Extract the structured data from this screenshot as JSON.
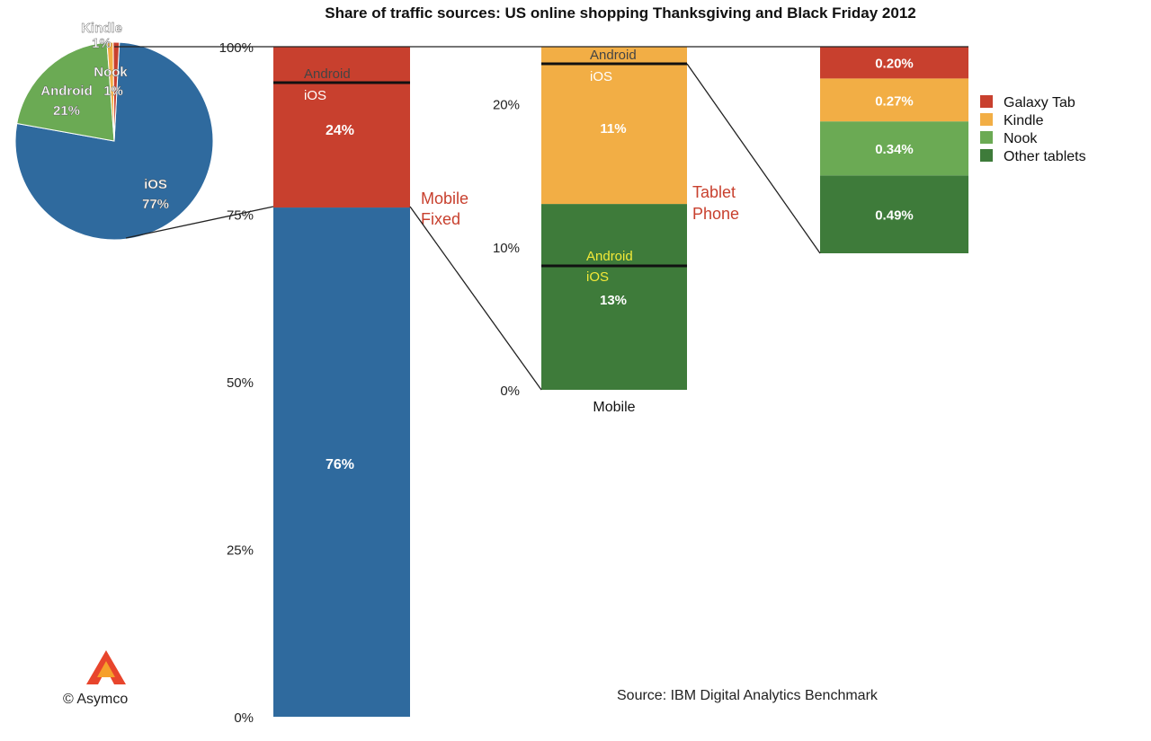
{
  "chart_data": {
    "type": "bar",
    "title": "Share of traffic sources: US online shopping Thanksgiving and Black Friday 2012",
    "source": "Source: IBM Digital Analytics Benchmark",
    "credit": "© Asymco",
    "colors": {
      "ios_blue": "#2F6A9E",
      "red": "#C8402E",
      "orange": "#F2AE45",
      "light_green": "#6BAA54",
      "dark_green": "#3E7B3A"
    },
    "pie": {
      "slices": [
        {
          "name": "iOS",
          "label": "77%",
          "value": 77,
          "color": "#2F6A9E"
        },
        {
          "name": "Android",
          "label": "21%",
          "value": 21,
          "color": "#6BAA54"
        },
        {
          "name": "Kindle",
          "label": "1%",
          "value": 1,
          "color": "#F2AE45"
        },
        {
          "name": "Nook",
          "label": "1%",
          "value": 1,
          "color": "#C8402E"
        }
      ]
    },
    "bar1": {
      "ylim": [
        0,
        100
      ],
      "ticks": [
        "0%",
        "25%",
        "50%",
        "75%",
        "100%"
      ],
      "tick_values": [
        0,
        25,
        50,
        75,
        100
      ],
      "segments": [
        {
          "name": "Fixed",
          "value": 76,
          "label": "76%",
          "color": "#2F6A9E"
        },
        {
          "name": "Mobile",
          "value": 24,
          "label": "24%",
          "color": "#C8402E",
          "sublabels": [
            "Android",
            "iOS"
          ]
        }
      ],
      "side_labels": [
        "Mobile",
        "Fixed"
      ]
    },
    "bar2": {
      "xlabel": "Mobile",
      "ylim": [
        0,
        24
      ],
      "ticks": [
        "0%",
        "10%",
        "20%"
      ],
      "tick_values": [
        0,
        10,
        20
      ],
      "segments": [
        {
          "name": "Phone",
          "value": 13,
          "label": "13%",
          "color": "#3E7B3A",
          "sublabels": [
            "Android",
            "iOS"
          ]
        },
        {
          "name": "Tablet",
          "value": 11,
          "label": "11%",
          "color": "#F2AE45",
          "sublabels": [
            "Android",
            "iOS"
          ]
        }
      ],
      "side_labels": [
        "Tablet",
        "Phone"
      ]
    },
    "bar3": {
      "segments": [
        {
          "name": "Other tablets",
          "value": 0.49,
          "label": "0.49%",
          "color": "#3E7B3A"
        },
        {
          "name": "Nook",
          "value": 0.34,
          "label": "0.34%",
          "color": "#6BAA54"
        },
        {
          "name": "Kindle",
          "value": 0.27,
          "label": "0.27%",
          "color": "#F2AE45"
        },
        {
          "name": "Galaxy Tab",
          "value": 0.2,
          "label": "0.20%",
          "color": "#C8402E"
        }
      ]
    },
    "legend": [
      {
        "label": "Galaxy Tab",
        "color": "#C8402E"
      },
      {
        "label": "Kindle",
        "color": "#F2AE45"
      },
      {
        "label": "Nook",
        "color": "#6BAA54"
      },
      {
        "label": "Other tablets",
        "color": "#3E7B3A"
      }
    ]
  }
}
